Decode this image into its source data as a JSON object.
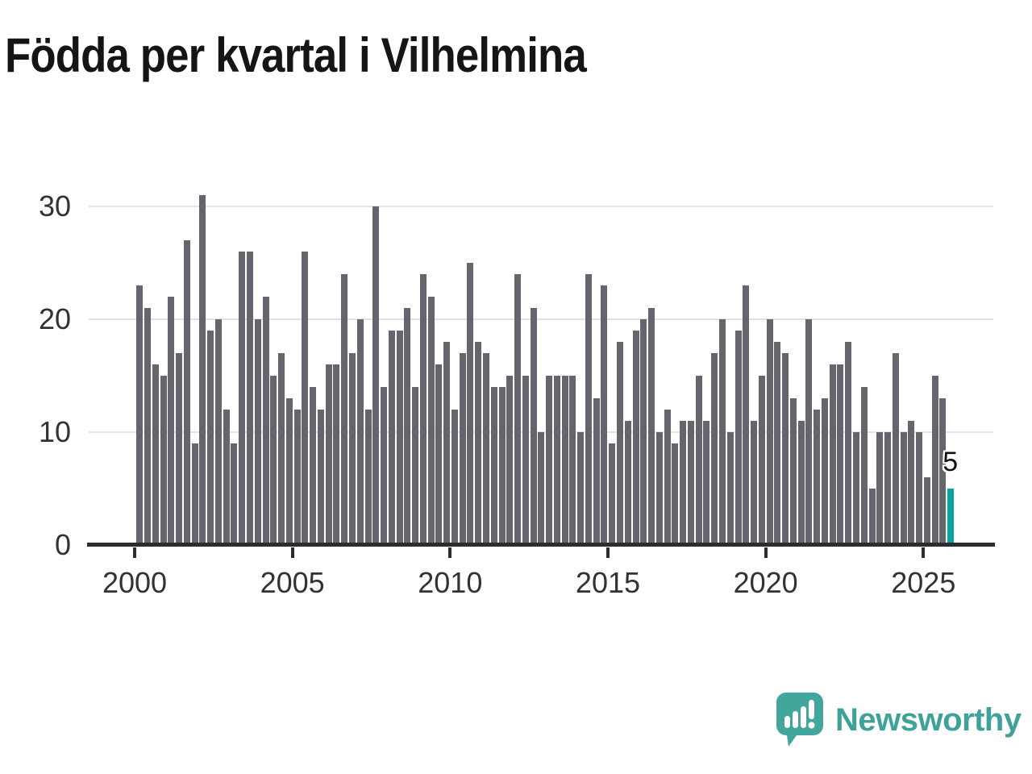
{
  "title": "Födda per kvartal i Vilhelmina",
  "annotation": {
    "text": "5",
    "bar_index": 103
  },
  "logo": {
    "text": "Newsworthy",
    "icon": "newsworthy-speech-bubble-chart-icon",
    "color": "#3fa298"
  },
  "colors": {
    "bar": "#65656d",
    "highlight": "#09a6a0",
    "axis": "#2d2d30",
    "grid": "#e2e2e2",
    "label": "#333333"
  },
  "chart_data": {
    "type": "bar",
    "title": "Födda per kvartal i Vilhelmina",
    "xlabel": "",
    "ylabel": "",
    "x_start_year": 2000,
    "x_period": "quarter",
    "x_tick_labels": [
      "2000",
      "2005",
      "2010",
      "2015",
      "2020",
      "2025"
    ],
    "y_tick_labels": [
      "0",
      "10",
      "20",
      "30"
    ],
    "ylim": [
      0,
      31.5
    ],
    "gridlines": [
      10,
      20,
      30
    ],
    "legend": "none",
    "highlight_index": 103,
    "highlight_value": 5,
    "values": [
      23,
      21,
      16,
      15,
      22,
      17,
      27,
      9,
      31,
      19,
      20,
      12,
      9,
      26,
      26,
      20,
      22,
      15,
      17,
      13,
      12,
      26,
      14,
      12,
      16,
      16,
      24,
      17,
      20,
      12,
      30,
      14,
      19,
      19,
      21,
      14,
      24,
      22,
      16,
      18,
      12,
      17,
      25,
      18,
      17,
      14,
      14,
      15,
      24,
      15,
      21,
      10,
      15,
      15,
      15,
      15,
      10,
      24,
      13,
      23,
      9,
      18,
      11,
      19,
      20,
      21,
      10,
      12,
      9,
      11,
      11,
      15,
      11,
      17,
      20,
      10,
      19,
      23,
      11,
      15,
      20,
      18,
      17,
      13,
      11,
      20,
      12,
      13,
      16,
      16,
      18,
      10,
      14,
      5,
      10,
      10,
      17,
      10,
      11,
      10,
      6,
      15,
      13,
      5
    ]
  }
}
